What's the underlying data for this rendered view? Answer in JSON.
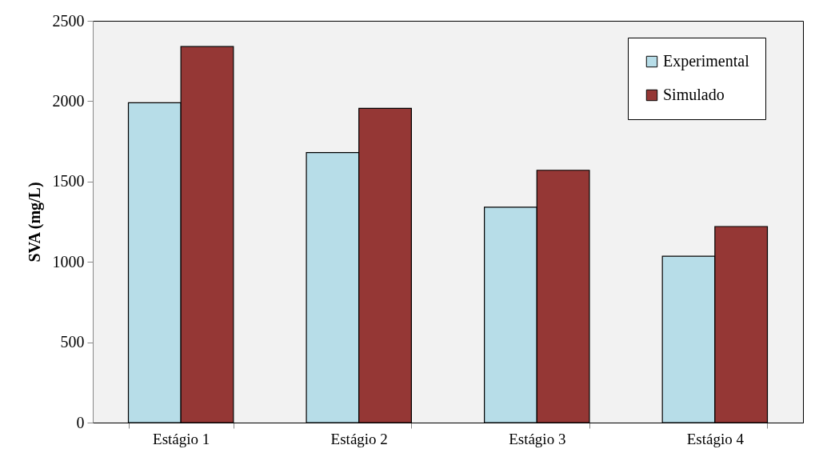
{
  "chart_data": {
    "type": "bar",
    "ylabel": "SVA (mg/L)",
    "categories": [
      "Estágio 1",
      "Estágio 2",
      "Estágio 3",
      "Estágio 4"
    ],
    "series": [
      {
        "name": "Experimental",
        "color": "#b7dde8",
        "values": [
          1990,
          1680,
          1340,
          1035
        ]
      },
      {
        "name": "Simulado",
        "color": "#953735",
        "values": [
          2340,
          1955,
          1570,
          1220
        ]
      }
    ],
    "ylim": [
      0,
      2500
    ],
    "yticks": [
      0,
      500,
      1000,
      1500,
      2000,
      2500
    ],
    "grid": false,
    "legend": "top right"
  }
}
